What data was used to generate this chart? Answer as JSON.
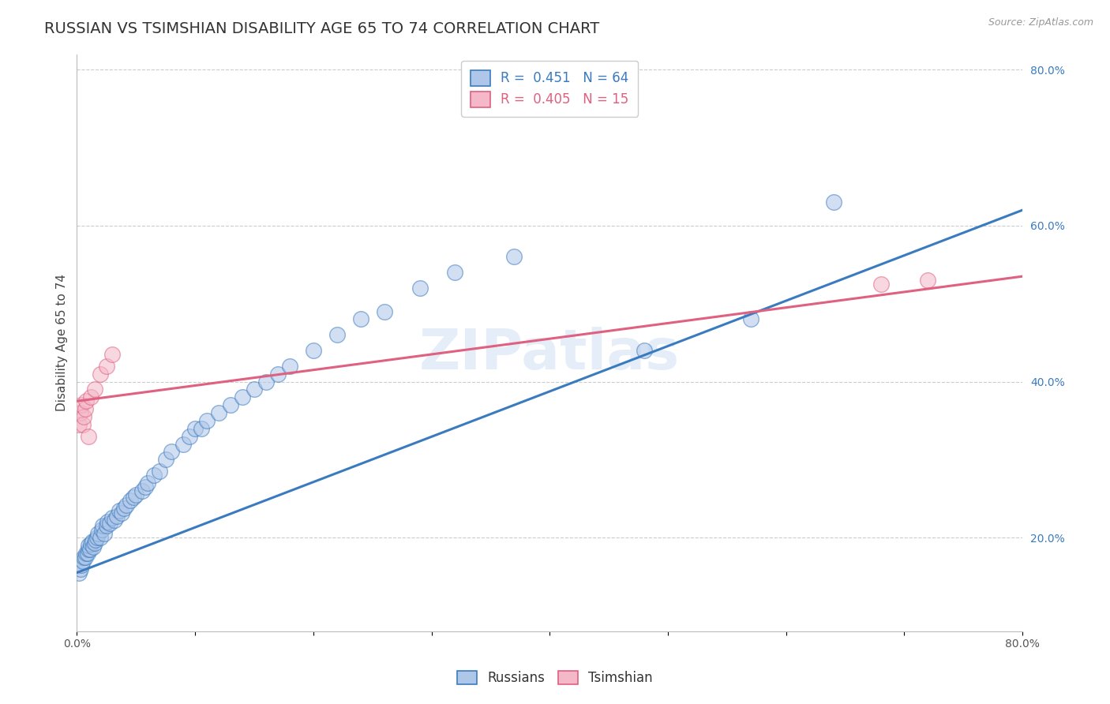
{
  "title": "RUSSIAN VS TSIMSHIAN DISABILITY AGE 65 TO 74 CORRELATION CHART",
  "source_text": "Source: ZipAtlas.com",
  "ylabel": "Disability Age 65 to 74",
  "xlim": [
    0.0,
    0.8
  ],
  "ylim": [
    0.08,
    0.82
  ],
  "xticks": [
    0.0,
    0.1,
    0.2,
    0.3,
    0.4,
    0.5,
    0.6,
    0.7,
    0.8
  ],
  "xticklabels": [
    "0.0%",
    "",
    "",
    "",
    "",
    "",
    "",
    "",
    "80.0%"
  ],
  "yticks_right": [
    0.2,
    0.4,
    0.6,
    0.8
  ],
  "ytick_right_labels": [
    "20.0%",
    "40.0%",
    "60.0%",
    "80.0%"
  ],
  "russian_R": 0.451,
  "russian_N": 64,
  "tsimshian_R": 0.405,
  "tsimshian_N": 15,
  "russian_color": "#aec6e8",
  "tsimshian_color": "#f4b8c8",
  "russian_line_color": "#3a7bbf",
  "tsimshian_line_color": "#e06080",
  "watermark": "ZIPatlas",
  "background_color": "#ffffff",
  "russians_scatter_x": [
    0.002,
    0.003,
    0.004,
    0.005,
    0.006,
    0.007,
    0.008,
    0.009,
    0.01,
    0.01,
    0.011,
    0.012,
    0.013,
    0.014,
    0.015,
    0.016,
    0.017,
    0.018,
    0.02,
    0.021,
    0.022,
    0.023,
    0.025,
    0.026,
    0.028,
    0.03,
    0.032,
    0.034,
    0.036,
    0.038,
    0.04,
    0.042,
    0.045,
    0.048,
    0.05,
    0.055,
    0.058,
    0.06,
    0.065,
    0.07,
    0.075,
    0.08,
    0.09,
    0.095,
    0.1,
    0.105,
    0.11,
    0.12,
    0.13,
    0.14,
    0.15,
    0.16,
    0.17,
    0.18,
    0.2,
    0.22,
    0.24,
    0.26,
    0.29,
    0.32,
    0.37,
    0.48,
    0.57,
    0.64
  ],
  "russians_scatter_y": [
    0.155,
    0.16,
    0.165,
    0.17,
    0.175,
    0.175,
    0.18,
    0.18,
    0.185,
    0.19,
    0.185,
    0.192,
    0.195,
    0.188,
    0.193,
    0.197,
    0.2,
    0.205,
    0.2,
    0.21,
    0.215,
    0.205,
    0.215,
    0.22,
    0.218,
    0.225,
    0.222,
    0.228,
    0.235,
    0.232,
    0.238,
    0.242,
    0.248,
    0.252,
    0.255,
    0.26,
    0.265,
    0.27,
    0.28,
    0.285,
    0.3,
    0.31,
    0.32,
    0.33,
    0.34,
    0.34,
    0.35,
    0.36,
    0.37,
    0.38,
    0.39,
    0.4,
    0.41,
    0.42,
    0.44,
    0.46,
    0.48,
    0.49,
    0.52,
    0.54,
    0.56,
    0.44,
    0.48,
    0.63
  ],
  "tsimshian_scatter_x": [
    0.002,
    0.003,
    0.004,
    0.005,
    0.006,
    0.007,
    0.008,
    0.01,
    0.012,
    0.015,
    0.02,
    0.025,
    0.03,
    0.68,
    0.72
  ],
  "tsimshian_scatter_y": [
    0.345,
    0.36,
    0.37,
    0.345,
    0.355,
    0.365,
    0.375,
    0.33,
    0.38,
    0.39,
    0.41,
    0.42,
    0.435,
    0.525,
    0.53
  ],
  "russian_line_x0": 0.0,
  "russian_line_y0": 0.155,
  "russian_line_x1": 0.8,
  "russian_line_y1": 0.62,
  "tsimshian_line_x0": 0.0,
  "tsimshian_line_y0": 0.375,
  "tsimshian_line_x1": 0.8,
  "tsimshian_line_y1": 0.535,
  "title_fontsize": 14,
  "axis_label_fontsize": 11,
  "tick_fontsize": 10,
  "legend_fontsize": 12,
  "source_fontsize": 9,
  "scatter_size": 200,
  "scatter_alpha": 0.55,
  "scatter_linewidth": 1.0
}
